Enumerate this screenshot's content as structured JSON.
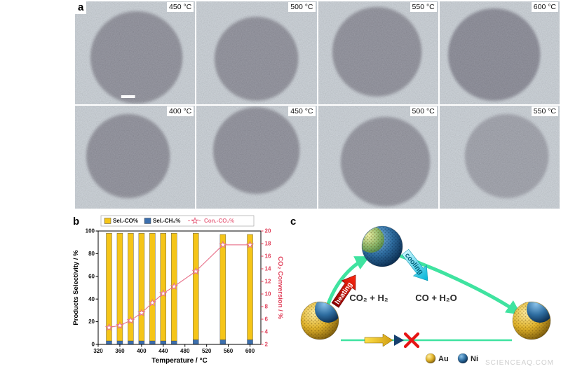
{
  "panels": {
    "a": "a",
    "b": "b",
    "c": "c"
  },
  "tem_images": [
    {
      "temp": "450 °C"
    },
    {
      "temp": "500 °C"
    },
    {
      "temp": "550 °C"
    },
    {
      "temp": "600 °C"
    },
    {
      "temp": "400 °C"
    },
    {
      "temp": "450 °C"
    },
    {
      "temp": "500 °C"
    },
    {
      "temp": "550 °C"
    }
  ],
  "chart_data": {
    "type": "bar",
    "subtype": "stacked-bars-with-conversion-line",
    "title": "",
    "xlabel": "Temperature / °C",
    "ylabel_left": "Products Selectivity / %",
    "ylabel_right": "CO₂ Conversion / %",
    "xlim": [
      320,
      620
    ],
    "ylim_left": [
      0,
      100
    ],
    "ylim_right": [
      2,
      20
    ],
    "x_ticks": [
      320,
      360,
      400,
      440,
      480,
      520,
      560,
      600
    ],
    "y_ticks_left": [
      0,
      20,
      40,
      60,
      80,
      100
    ],
    "y_ticks_right": [
      2,
      4,
      6,
      8,
      10,
      12,
      14,
      16,
      18,
      20
    ],
    "right_axis_color": "#e0405a",
    "grid": false,
    "legend_position": "top",
    "categories": [
      340,
      360,
      380,
      400,
      420,
      440,
      460,
      500,
      550,
      600
    ],
    "series": [
      {
        "name": "Sel.-CO%",
        "type": "bar",
        "axis": "left",
        "color": "#f5c518",
        "values": [
          95,
          95,
          95,
          95,
          95,
          95,
          95,
          94,
          93,
          93
        ]
      },
      {
        "name": "Sel.-CH₄%",
        "type": "bar",
        "axis": "left",
        "color": "#3c6fae",
        "values": [
          3,
          3,
          3,
          3,
          3,
          3,
          3,
          4,
          4,
          4
        ]
      },
      {
        "name": "Con.-CO₂%",
        "type": "line",
        "axis": "right",
        "color": "#e8718a",
        "marker": "open-star",
        "values": [
          4.7,
          5.0,
          5.8,
          7.0,
          8.6,
          10.1,
          11.2,
          13.6,
          17.8,
          17.8
        ]
      }
    ]
  },
  "diagram": {
    "heating_label": "heating",
    "cooling_label": "cooling",
    "forward_reaction": "CO₂ + H₂",
    "reverse_reaction": "CO + H₂O",
    "legend": [
      {
        "label": "Au",
        "color": "#e6b820"
      },
      {
        "label": "Ni",
        "color": "#2e6da0"
      }
    ]
  },
  "watermark": "SCIENCEAQ.COM"
}
